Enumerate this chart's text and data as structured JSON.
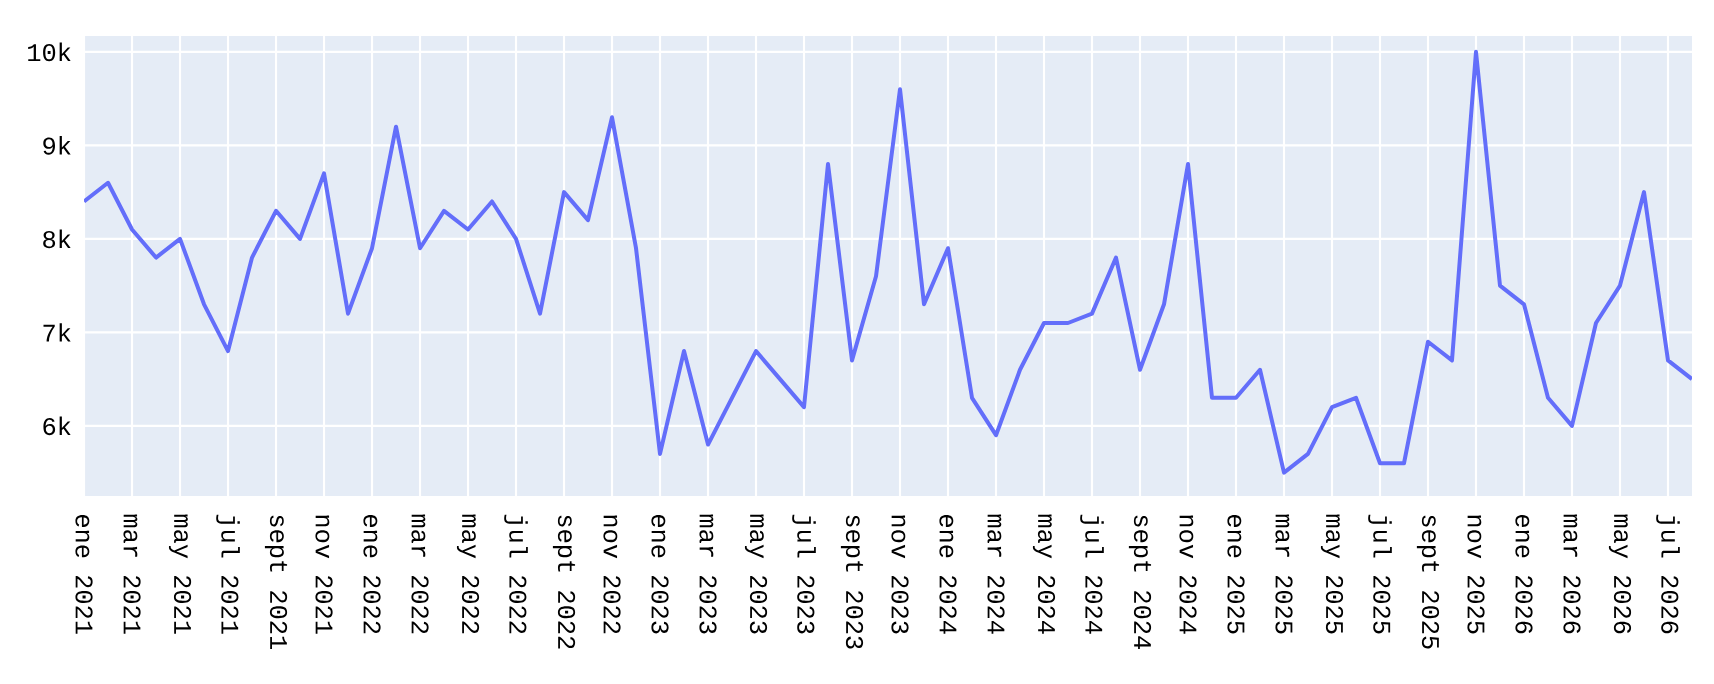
{
  "chart_data": {
    "type": "line",
    "x": [
      "2021-01",
      "2021-02",
      "2021-03",
      "2021-04",
      "2021-05",
      "2021-06",
      "2021-07",
      "2021-08",
      "2021-09",
      "2021-10",
      "2021-11",
      "2021-12",
      "2022-01",
      "2022-02",
      "2022-03",
      "2022-04",
      "2022-05",
      "2022-06",
      "2022-07",
      "2022-08",
      "2022-09",
      "2022-10",
      "2022-11",
      "2022-12",
      "2023-01",
      "2023-02",
      "2023-03",
      "2023-04",
      "2023-05",
      "2023-06",
      "2023-07",
      "2023-08",
      "2023-09",
      "2023-10",
      "2023-11",
      "2023-12",
      "2024-01",
      "2024-02",
      "2024-03",
      "2024-04",
      "2024-05",
      "2024-06",
      "2024-07",
      "2024-08",
      "2024-09",
      "2024-10",
      "2024-11",
      "2024-12",
      "2025-01",
      "2025-02",
      "2025-03",
      "2025-04",
      "2025-05",
      "2025-06",
      "2025-07",
      "2025-08",
      "2025-09",
      "2025-10",
      "2025-11",
      "2025-12",
      "2026-01",
      "2026-02",
      "2026-03",
      "2026-04",
      "2026-05",
      "2026-06",
      "2026-07",
      "2026-08"
    ],
    "series": [
      {
        "color": "#636efa",
        "values": [
          8400,
          8600,
          8100,
          7800,
          8000,
          7300,
          6800,
          7800,
          8300,
          8000,
          8700,
          7200,
          7900,
          9200,
          7900,
          8300,
          8100,
          8400,
          8000,
          7200,
          8500,
          8200,
          9300,
          7900,
          5700,
          6800,
          5800,
          6300,
          6800,
          6500,
          6200,
          8800,
          6700,
          7600,
          9600,
          7300,
          7900,
          6300,
          5900,
          6600,
          7100,
          7100,
          7200,
          7800,
          6600,
          7300,
          8800,
          6300,
          6300,
          6600,
          5500,
          5700,
          6200,
          6300,
          5600,
          5600,
          6900,
          6700,
          10000,
          7500,
          7300,
          6300,
          6000,
          7100,
          7500,
          8500,
          6700,
          6500
        ]
      }
    ],
    "xlim": [
      "2021-01",
      "2026-08"
    ],
    "xticks": [
      {
        "value": "2021-01",
        "label": "ene 2021"
      },
      {
        "value": "2021-03",
        "label": "mar 2021"
      },
      {
        "value": "2021-05",
        "label": "may 2021"
      },
      {
        "value": "2021-07",
        "label": "jul 2021"
      },
      {
        "value": "2021-09",
        "label": "sept 2021"
      },
      {
        "value": "2021-11",
        "label": "nov 2021"
      },
      {
        "value": "2022-01",
        "label": "ene 2022"
      },
      {
        "value": "2022-03",
        "label": "mar 2022"
      },
      {
        "value": "2022-05",
        "label": "may 2022"
      },
      {
        "value": "2022-07",
        "label": "jul 2022"
      },
      {
        "value": "2022-09",
        "label": "sept 2022"
      },
      {
        "value": "2022-11",
        "label": "nov 2022"
      },
      {
        "value": "2023-01",
        "label": "ene 2023"
      },
      {
        "value": "2023-03",
        "label": "mar 2023"
      },
      {
        "value": "2023-05",
        "label": "may 2023"
      },
      {
        "value": "2023-07",
        "label": "jul 2023"
      },
      {
        "value": "2023-09",
        "label": "sept 2023"
      },
      {
        "value": "2023-11",
        "label": "nov 2023"
      },
      {
        "value": "2024-01",
        "label": "ene 2024"
      },
      {
        "value": "2024-03",
        "label": "mar 2024"
      },
      {
        "value": "2024-05",
        "label": "may 2024"
      },
      {
        "value": "2024-07",
        "label": "jul 2024"
      },
      {
        "value": "2024-09",
        "label": "sept 2024"
      },
      {
        "value": "2024-11",
        "label": "nov 2024"
      },
      {
        "value": "2025-01",
        "label": "ene 2025"
      },
      {
        "value": "2025-03",
        "label": "mar 2025"
      },
      {
        "value": "2025-05",
        "label": "may 2025"
      },
      {
        "value": "2025-07",
        "label": "jul 2025"
      },
      {
        "value": "2025-09",
        "label": "sept 2025"
      },
      {
        "value": "2025-11",
        "label": "nov 2025"
      },
      {
        "value": "2026-01",
        "label": "ene 2026"
      },
      {
        "value": "2026-03",
        "label": "mar 2026"
      },
      {
        "value": "2026-05",
        "label": "may 2026"
      },
      {
        "value": "2026-07",
        "label": "jul 2026"
      }
    ],
    "ylim": [
      5250,
      10170
    ],
    "yticks": [
      {
        "value": 6000,
        "label": "6k"
      },
      {
        "value": 7000,
        "label": "7k"
      },
      {
        "value": 8000,
        "label": "8k"
      },
      {
        "value": 9000,
        "label": "9k"
      },
      {
        "value": 10000,
        "label": "10k"
      }
    ],
    "grid": true,
    "marker": "none",
    "line_style": "solid"
  }
}
